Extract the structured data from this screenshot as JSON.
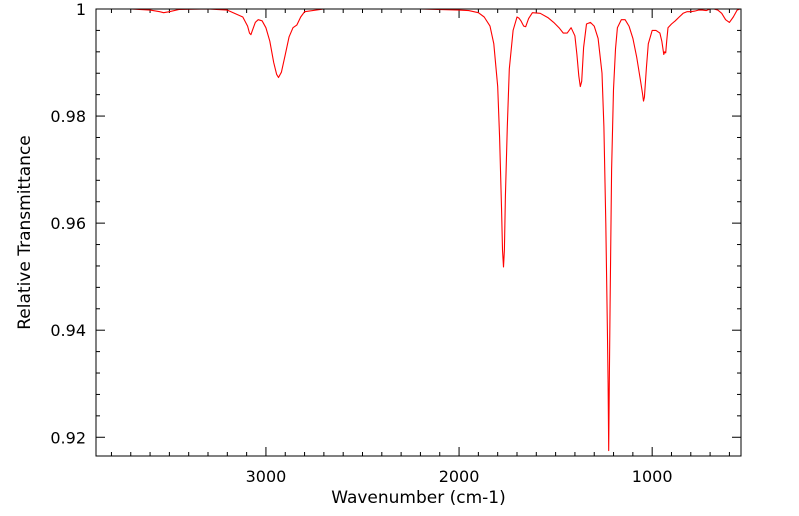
{
  "chart_data": {
    "type": "line",
    "title": "",
    "xlabel": "Wavenumber (cm-1)",
    "ylabel": "Relative Transmittance",
    "x_reversed": true,
    "xlim": [
      3880,
      540
    ],
    "ylim": [
      0.9165,
      1.0
    ],
    "x_ticks_major": [
      3000,
      2000,
      1000
    ],
    "x_tick_labels": [
      "3000",
      "2000",
      "1000"
    ],
    "y_ticks_major": [
      0.92,
      0.94,
      0.96,
      0.98,
      1.0
    ],
    "y_tick_labels": [
      "0.92",
      "0.94",
      "0.96",
      "0.98",
      "1"
    ],
    "grid": false,
    "legend": "none",
    "line_color": "#ff0000",
    "series": [
      {
        "x": [
          3880,
          3700,
          3600,
          3550,
          3530,
          3500,
          3450,
          3300,
          3200,
          3120,
          3095,
          3085,
          3078,
          3070,
          3055,
          3040,
          3020,
          3000,
          2980,
          2960,
          2945,
          2935,
          2920,
          2900,
          2880,
          2860,
          2840,
          2820,
          2800,
          2700,
          2500,
          2200,
          2000,
          1950,
          1900,
          1870,
          1840,
          1820,
          1800,
          1790,
          1780,
          1775,
          1770,
          1765,
          1760,
          1750,
          1740,
          1720,
          1700,
          1690,
          1680,
          1665,
          1655,
          1640,
          1620,
          1580,
          1540,
          1510,
          1480,
          1460,
          1440,
          1420,
          1400,
          1390,
          1380,
          1372,
          1365,
          1355,
          1340,
          1320,
          1300,
          1280,
          1260,
          1250,
          1240,
          1232,
          1228,
          1225,
          1222,
          1218,
          1210,
          1200,
          1190,
          1180,
          1160,
          1140,
          1120,
          1100,
          1080,
          1060,
          1050,
          1045,
          1040,
          1030,
          1020,
          1000,
          980,
          960,
          950,
          940,
          935,
          930,
          925,
          918,
          900,
          880,
          860,
          840,
          820,
          800,
          780,
          760,
          740,
          720,
          700,
          680,
          660,
          640,
          620,
          600,
          580,
          560,
          545
        ],
        "y": [
          1.0,
          1.0,
          0.9998,
          0.9995,
          0.9993,
          0.9995,
          0.9999,
          1.0,
          0.9998,
          0.9985,
          0.9968,
          0.9955,
          0.9952,
          0.996,
          0.9975,
          0.998,
          0.9978,
          0.9965,
          0.994,
          0.99,
          0.9878,
          0.9872,
          0.9882,
          0.9915,
          0.9948,
          0.9965,
          0.997,
          0.9985,
          0.9995,
          1.0,
          1.0,
          1.0,
          0.9998,
          0.9997,
          0.9993,
          0.9985,
          0.9968,
          0.9935,
          0.9855,
          0.976,
          0.963,
          0.955,
          0.9518,
          0.955,
          0.965,
          0.978,
          0.9888,
          0.996,
          0.9985,
          0.9983,
          0.9978,
          0.9968,
          0.9967,
          0.9982,
          0.9993,
          0.9992,
          0.9984,
          0.9975,
          0.9964,
          0.9955,
          0.9955,
          0.9965,
          0.995,
          0.9915,
          0.9875,
          0.9855,
          0.9865,
          0.9928,
          0.9972,
          0.9975,
          0.9968,
          0.9945,
          0.988,
          0.978,
          0.96,
          0.94,
          0.93,
          0.9175,
          0.93,
          0.945,
          0.97,
          0.985,
          0.9925,
          0.9965,
          0.998,
          0.998,
          0.9968,
          0.9945,
          0.991,
          0.9865,
          0.9842,
          0.9828,
          0.9835,
          0.989,
          0.9935,
          0.996,
          0.996,
          0.9955,
          0.994,
          0.9915,
          0.992,
          0.9918,
          0.994,
          0.9965,
          0.9972,
          0.9978,
          0.9985,
          0.9992,
          0.9995,
          0.9995,
          0.9996,
          0.9998,
          0.9998,
          0.9997,
          1.0,
          1.0,
          0.9998,
          0.9992,
          0.998,
          0.9975,
          0.9985,
          0.9998,
          1.0
        ]
      }
    ]
  }
}
